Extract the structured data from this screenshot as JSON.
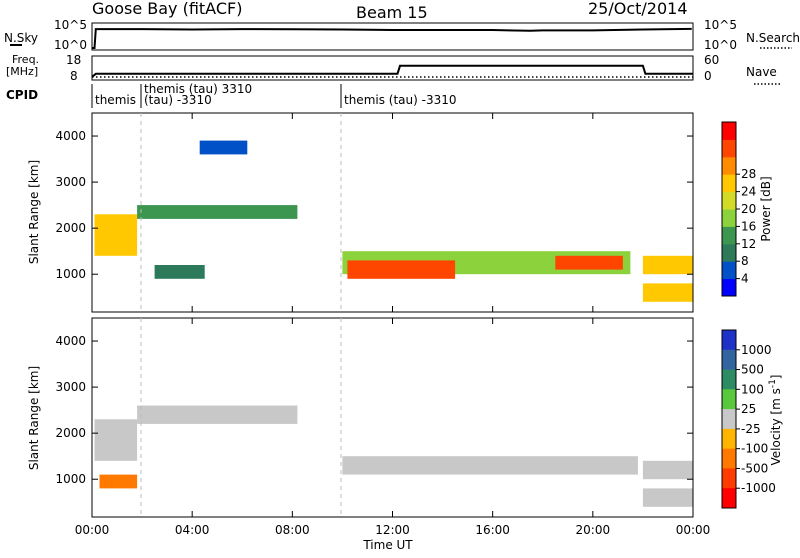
{
  "header": {
    "station": "Goose Bay (fitACF)",
    "beam": "Beam 15",
    "date": "25/Oct/2014"
  },
  "noise_panel": {
    "left_label": "N.Sky",
    "left_ticks": [
      "10^5",
      "10^0"
    ],
    "right_label": "N.Search",
    "right_ticks": [
      "10^5",
      "10^0"
    ]
  },
  "freq_panel": {
    "left_label_line1": "Freq.",
    "left_label_line2": "[MHz]",
    "left_ticks": [
      "18",
      "8"
    ],
    "right_label": "Nave",
    "right_ticks": [
      "60",
      "0"
    ]
  },
  "cpid_panel": {
    "label": "CPID",
    "segments": [
      {
        "text": "themis",
        "start_h": 0.0
      },
      {
        "text": "themis (tau) 3310",
        "start_h": 1.8
      },
      {
        "text": "(tau) -3310",
        "start_h": 1.8
      },
      {
        "text": "themis (tau) -3310",
        "start_h": 10.0
      }
    ]
  },
  "axes": {
    "xlabel": "Time UT",
    "xticks": [
      "00:00",
      "04:00",
      "08:00",
      "12:00",
      "16:00",
      "20:00",
      "00:00"
    ],
    "ylabel": "Slant Range [km]",
    "yticks": [
      "1000",
      "2000",
      "3000",
      "4000"
    ]
  },
  "power_colorbar": {
    "label": "Power [dB]",
    "ticks": [
      "4",
      "8",
      "12",
      "16",
      "20",
      "24",
      "28"
    ],
    "colors": [
      "#0000ff",
      "#0050c8",
      "#2d7a5a",
      "#3c9650",
      "#8cd23c",
      "#d2dc28",
      "#ffc800",
      "#ff8c00",
      "#ff4600",
      "#ff0000"
    ]
  },
  "velocity_colorbar": {
    "label": "Velocity [m s",
    "label_sup": "-1",
    "label_end": "]",
    "ticks": [
      "1000",
      "500",
      "100",
      "25",
      "-25",
      "-100",
      "-500",
      "-1000"
    ],
    "colors": [
      "#1e32c8",
      "#3264a0",
      "#2d8c64",
      "#5ac83c",
      "#c8c8c8",
      "#ffb400",
      "#ff7800",
      "#ff3c00",
      "#ff0000"
    ]
  },
  "chart_data": [
    {
      "type": "line",
      "title": "N.Sky / N.Search",
      "x": [
        0.0,
        0.1,
        0.15,
        2,
        4,
        6,
        8,
        10,
        12,
        14,
        16,
        17.5,
        18,
        20,
        22,
        23.95
      ],
      "y_log10": [
        0.0,
        0.0,
        4.3,
        4.3,
        4.2,
        4.3,
        4.25,
        4.2,
        4.1,
        4.1,
        4.1,
        3.9,
        4.0,
        4.0,
        4.2,
        4.35
      ]
    },
    {
      "type": "line",
      "title": "Freq / Nave",
      "series": [
        {
          "x": [
            0.0,
            0.15,
            12.2,
            12.3,
            22.0,
            22.1,
            24.0
          ],
          "y": [
            8,
            10,
            10,
            15,
            15,
            10,
            10
          ]
        },
        {
          "x": [
            0.0,
            24.0
          ],
          "y": [
            0,
            0
          ]
        }
      ],
      "yticks_left": [
        8,
        18
      ],
      "yticks_right": [
        0,
        60
      ]
    },
    {
      "type": "heatmap",
      "title": "Power [dB]",
      "xlim": [
        0,
        24
      ],
      "ylim": [
        180,
        4500
      ],
      "regions": [
        {
          "x0": 0.1,
          "x1": 1.8,
          "y0": 1400,
          "y1": 2300,
          "power": 18
        },
        {
          "x0": 1.8,
          "x1": 8.2,
          "y0": 2200,
          "y1": 2500,
          "power": 10
        },
        {
          "x0": 2.5,
          "x1": 4.5,
          "y0": 900,
          "y1": 1200,
          "power": 6
        },
        {
          "x0": 4.3,
          "x1": 6.2,
          "y0": 3600,
          "y1": 3900,
          "power": 4
        },
        {
          "x0": 10.0,
          "x1": 21.5,
          "y0": 1000,
          "y1": 1500,
          "power": 12
        },
        {
          "x0": 10.2,
          "x1": 14.5,
          "y0": 900,
          "y1": 1300,
          "power": 24
        },
        {
          "x0": 18.5,
          "x1": 21.2,
          "y0": 1100,
          "y1": 1400,
          "power": 26
        },
        {
          "x0": 22.0,
          "x1": 24.0,
          "y0": 400,
          "y1": 800,
          "power": 20
        },
        {
          "x0": 22.0,
          "x1": 24.0,
          "y0": 1000,
          "y1": 1400,
          "power": 18
        }
      ]
    },
    {
      "type": "heatmap",
      "title": "Velocity [m s-1]",
      "xlim": [
        0,
        24
      ],
      "ylim": [
        180,
        4500
      ],
      "regions": [
        {
          "x0": 0.1,
          "x1": 1.8,
          "y0": 1400,
          "y1": 2300,
          "velocity": 0
        },
        {
          "x0": 1.8,
          "x1": 8.2,
          "y0": 2200,
          "y1": 2600,
          "velocity": 0
        },
        {
          "x0": 0.3,
          "x1": 1.8,
          "y0": 800,
          "y1": 1100,
          "velocity": -200
        },
        {
          "x0": 10.0,
          "x1": 21.8,
          "y0": 1100,
          "y1": 1500,
          "velocity": 0
        },
        {
          "x0": 22.0,
          "x1": 24.0,
          "y0": 400,
          "y1": 800,
          "velocity": 0
        },
        {
          "x0": 22.0,
          "x1": 24.0,
          "y0": 1000,
          "y1": 1400,
          "velocity": 0
        }
      ]
    }
  ]
}
